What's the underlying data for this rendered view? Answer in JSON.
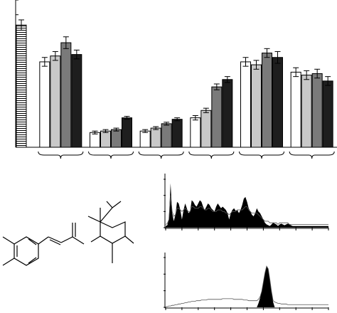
{
  "chart_data": [
    {
      "type": "bar",
      "title": "",
      "xlabel": "",
      "ylabel": "",
      "ylim": [
        0,
        100
      ],
      "grid": false,
      "legend": "none",
      "reference_bar": {
        "value": 83,
        "error": 3.5,
        "fill": "hatched"
      },
      "groups": 6,
      "series": [
        {
          "values": [
            58,
            10,
            11,
            20,
            58,
            51
          ],
          "errors": [
            3,
            1,
            1,
            1.5,
            3,
            3
          ],
          "color": "#ffffff"
        },
        {
          "values": [
            62,
            11,
            13,
            25,
            56,
            49
          ],
          "errors": [
            3,
            1,
            1,
            1.5,
            3,
            3
          ],
          "color": "#c8c8c8"
        },
        {
          "values": [
            71,
            12,
            16,
            41,
            64,
            50
          ],
          "errors": [
            4,
            1,
            1,
            2,
            3,
            3
          ],
          "color": "#7a7a7a"
        },
        {
          "values": [
            63,
            20,
            19,
            46,
            61,
            45
          ],
          "errors": [
            3,
            1,
            1,
            2,
            4,
            3
          ],
          "color": "#1e1e1e"
        }
      ]
    },
    {
      "type": "area",
      "title": "",
      "xlabel": "",
      "ylabel": "",
      "x": [
        0,
        1,
        2,
        3,
        4,
        5,
        6,
        7,
        8,
        9,
        10,
        11,
        12,
        13,
        14,
        15,
        16,
        17,
        18,
        19,
        20,
        21,
        22,
        23,
        24,
        25,
        26,
        27,
        28,
        29,
        30,
        31,
        32,
        33,
        34,
        35,
        36,
        37,
        38,
        39,
        40,
        41,
        42,
        43,
        44,
        45,
        46,
        47,
        48,
        49,
        50,
        51,
        52,
        53,
        54,
        55,
        56,
        57,
        58,
        59,
        60,
        61,
        62,
        63,
        64,
        65,
        66,
        67,
        68,
        69,
        70,
        71,
        72,
        73,
        74,
        75,
        76,
        77,
        78,
        79,
        80,
        81,
        82,
        83,
        84,
        85,
        86,
        87,
        88,
        89,
        90,
        91,
        92,
        93,
        94,
        95,
        96,
        97,
        98,
        99,
        100
      ],
      "values": [
        2,
        3,
        10,
        55,
        18,
        8,
        16,
        32,
        30,
        22,
        10,
        22,
        30,
        24,
        18,
        20,
        34,
        32,
        28,
        26,
        30,
        34,
        32,
        26,
        22,
        26,
        30,
        28,
        24,
        22,
        20,
        26,
        30,
        27,
        24,
        26,
        24,
        22,
        18,
        10,
        18,
        22,
        24,
        21,
        22,
        18,
        22,
        28,
        36,
        38,
        32,
        24,
        20,
        16,
        14,
        18,
        24,
        20,
        18,
        14,
        10,
        6,
        4,
        3,
        2,
        4,
        6,
        5,
        4,
        2,
        4,
        5,
        4,
        3,
        4,
        5,
        4,
        3,
        2,
        2,
        2,
        2,
        2,
        2,
        2,
        2,
        2,
        2,
        2,
        2,
        2,
        2,
        2,
        2,
        2,
        2,
        2,
        2,
        2,
        2,
        2
      ],
      "line_values": [
        4,
        5,
        10,
        40,
        20,
        14,
        16,
        24,
        24,
        22,
        20,
        22,
        24,
        22,
        20,
        20,
        26,
        26,
        24,
        24,
        24,
        26,
        26,
        24,
        22,
        22,
        24,
        24,
        22,
        20,
        20,
        20,
        22,
        22,
        22,
        20,
        20,
        18,
        18,
        16,
        18,
        20,
        20,
        20,
        22,
        22,
        22,
        22,
        24,
        26,
        26,
        22,
        20,
        18,
        18,
        18,
        18,
        16,
        14,
        12,
        10,
        8,
        8,
        8,
        6,
        6,
        6,
        6,
        6,
        4,
        6,
        6,
        6,
        6,
        6,
        6,
        4,
        4,
        4,
        4,
        4,
        4,
        4,
        4,
        4,
        4,
        4,
        4,
        4,
        4,
        4,
        4,
        4,
        4,
        4,
        4,
        4,
        4,
        4,
        4,
        4
      ],
      "ylim": [
        0,
        60
      ],
      "x_ticks": 11,
      "grid": false
    },
    {
      "type": "area",
      "title": "",
      "xlabel": "",
      "ylabel": "",
      "x": [
        0,
        1,
        2,
        3,
        4,
        5,
        6,
        7,
        8,
        9,
        10,
        11,
        12,
        13,
        14,
        15,
        16,
        17,
        18,
        19,
        20,
        21,
        22,
        23,
        24,
        25,
        26,
        27,
        28,
        29,
        30,
        31,
        32,
        33,
        34,
        35,
        36,
        37,
        38,
        39,
        40,
        41,
        42,
        43,
        44,
        45,
        46,
        47,
        48,
        49,
        50,
        51,
        52,
        53,
        54,
        55,
        56,
        57,
        58,
        59,
        60,
        61,
        62,
        63,
        64,
        65,
        66,
        67,
        68,
        69,
        70,
        71,
        72,
        73,
        74,
        75,
        76,
        77,
        78,
        79,
        80,
        81,
        82,
        83,
        84,
        85,
        86,
        87,
        88,
        89,
        90,
        91,
        92,
        93,
        94,
        95,
        96,
        97,
        98,
        99,
        100
      ],
      "values": [
        0,
        0,
        0,
        0,
        0,
        0,
        0,
        0,
        0,
        0,
        0,
        0,
        0,
        0,
        0,
        0,
        0,
        0,
        0,
        0,
        0,
        0,
        0,
        0,
        0,
        0,
        0,
        0,
        0,
        0,
        0,
        0,
        0,
        0,
        0,
        0,
        0,
        0,
        0,
        0,
        0,
        0,
        0,
        0,
        0,
        0,
        0,
        0,
        0,
        0,
        0,
        0,
        0,
        0,
        0,
        0,
        0,
        6,
        14,
        24,
        38,
        52,
        62,
        58,
        42,
        24,
        8,
        0,
        0,
        0,
        0,
        0,
        0,
        0,
        0,
        0,
        0,
        0,
        0,
        0,
        0,
        0,
        0,
        0,
        0,
        0,
        0,
        0,
        0,
        0,
        0,
        0,
        0,
        0,
        0,
        0,
        0,
        0,
        0,
        0,
        0
      ],
      "line_values": [
        1,
        1,
        2,
        2,
        3,
        3,
        4,
        4,
        5,
        5,
        6,
        6,
        7,
        7,
        8,
        8,
        9,
        9,
        9,
        10,
        10,
        10,
        11,
        11,
        11,
        11,
        12,
        12,
        12,
        12,
        12,
        12,
        12,
        12,
        12,
        13,
        13,
        13,
        13,
        13,
        13,
        13,
        12,
        12,
        12,
        12,
        12,
        12,
        11,
        11,
        11,
        10,
        10,
        10,
        10,
        10,
        10,
        12,
        16,
        24,
        38,
        52,
        62,
        58,
        42,
        24,
        10,
        8,
        7,
        6,
        6,
        5,
        5,
        5,
        5,
        4,
        4,
        4,
        4,
        4,
        4,
        4,
        4,
        4,
        4,
        4,
        4,
        4,
        4,
        4,
        4,
        4,
        4,
        4,
        4,
        4,
        4,
        4,
        4,
        4,
        4
      ],
      "ylim": [
        0,
        75
      ],
      "x_ticks": 11,
      "grid": false
    }
  ],
  "structure": {
    "molecule": "chemical-structure"
  }
}
